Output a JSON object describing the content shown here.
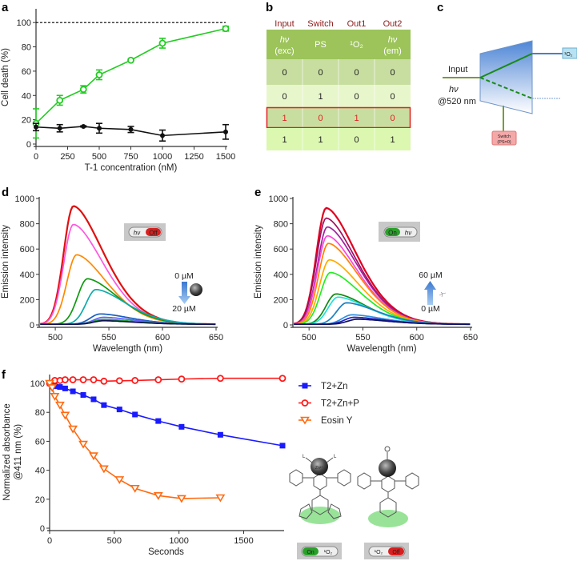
{
  "panel_labels": {
    "a": "a",
    "b": "b",
    "c": "c",
    "d": "d",
    "e": "e",
    "f": "f"
  },
  "colors": {
    "green": "#22cc22",
    "black": "#111111",
    "blue": "#1a1aff",
    "red": "#ff1a1a",
    "orange": "#ff6a10",
    "table_dark": "#9cc45a",
    "table_mid": "#c8dea0",
    "table_light": "#e8f6cc",
    "table_bright": "#dcf7b0",
    "highlight": "#e02020"
  },
  "chart_data": [
    {
      "id": "a",
      "type": "line",
      "xlabel": "T-1 concentration (nM)",
      "ylabel": "Cell death (%)",
      "xlim": [
        0,
        1500
      ],
      "ylim": [
        0,
        110
      ],
      "xticks": [
        0,
        250,
        500,
        750,
        1000,
        1250,
        1500
      ],
      "yticks": [
        0,
        20,
        40,
        60,
        80,
        100
      ],
      "reference_line": 100,
      "series": [
        {
          "name": "light",
          "color": "#22cc22",
          "marker": "open-circle",
          "x": [
            0,
            188,
            375,
            500,
            750,
            1000,
            1500
          ],
          "y": [
            17,
            36,
            45,
            57,
            69,
            83,
            95
          ],
          "err": [
            12,
            4,
            3,
            4,
            1,
            4,
            2
          ]
        },
        {
          "name": "dark",
          "color": "#111111",
          "marker": "filled-circle",
          "x": [
            0,
            188,
            375,
            500,
            750,
            1000,
            1500
          ],
          "y": [
            14,
            13,
            14.5,
            13,
            12,
            7,
            10
          ],
          "err": [
            3,
            3,
            0.5,
            4,
            2.5,
            4.5,
            6
          ]
        }
      ]
    },
    {
      "id": "b",
      "type": "table",
      "group_headers": [
        "Input",
        "Switch",
        "Out1",
        "Out2"
      ],
      "column_headers": [
        [
          "hν",
          "(exc)"
        ],
        [
          "PS",
          ""
        ],
        [
          "¹O₂",
          ""
        ],
        [
          "hν",
          "(em)"
        ]
      ],
      "rows": [
        [
          "0",
          "0",
          "0",
          "0"
        ],
        [
          "0",
          "1",
          "0",
          "0"
        ],
        [
          "1",
          "0",
          "1",
          "0"
        ],
        [
          "1",
          "1",
          "0",
          "1"
        ]
      ],
      "highlighted_row": 2
    },
    {
      "id": "d",
      "type": "line",
      "xlabel": "Wavelength (nm)",
      "ylabel": "Emission intensity",
      "xlim": [
        485,
        650
      ],
      "ylim": [
        0,
        1000
      ],
      "xticks": [
        500,
        550,
        600,
        650
      ],
      "yticks": [
        0,
        200,
        400,
        600,
        800,
        1000
      ],
      "annotation_top": "0 µM",
      "annotation_bottom": "20 µM",
      "switch_left": "hν",
      "switch_right": "Off",
      "series": [
        {
          "peak_nm": 517,
          "peak": 935,
          "color": "#e01010"
        },
        {
          "peak_nm": 517,
          "peak": 790,
          "color": "#ff55e0"
        },
        {
          "peak_nm": 520,
          "peak": 550,
          "color": "#ff8800"
        },
        {
          "peak_nm": 530,
          "peak": 360,
          "color": "#109a10"
        },
        {
          "peak_nm": 538,
          "peak": 275,
          "color": "#10aaaa"
        },
        {
          "peak_nm": 542,
          "peak": 82,
          "color": "#1a5fc0"
        },
        {
          "peak_nm": 545,
          "peak": 55,
          "color": "#6060ff"
        },
        {
          "peak_nm": 545,
          "peak": 38,
          "color": "#20a040"
        },
        {
          "peak_nm": 545,
          "peak": 28,
          "color": "#101050"
        }
      ]
    },
    {
      "id": "e",
      "type": "line",
      "xlabel": "Wavelength (nm)",
      "ylabel": "Emission intensity",
      "xlim": [
        485,
        650
      ],
      "ylim": [
        0,
        1000
      ],
      "xticks": [
        500,
        550,
        600,
        650
      ],
      "yticks": [
        0,
        200,
        400,
        600,
        800,
        1000
      ],
      "annotation_top": "60 µM",
      "annotation_bottom": "0 µM",
      "switch_left": "On",
      "switch_right": "hν",
      "series": [
        {
          "peak_nm": 516,
          "peak": 920,
          "color": "#e00020"
        },
        {
          "peak_nm": 516,
          "peak": 840,
          "color": "#a01060"
        },
        {
          "peak_nm": 517,
          "peak": 770,
          "color": "#a020a0"
        },
        {
          "peak_nm": 517,
          "peak": 700,
          "color": "#ff44dd"
        },
        {
          "peak_nm": 518,
          "peak": 640,
          "color": "#ff8000"
        },
        {
          "peak_nm": 519,
          "peak": 510,
          "color": "#ffaa00"
        },
        {
          "peak_nm": 520,
          "peak": 410,
          "color": "#22ee22"
        },
        {
          "peak_nm": 525,
          "peak": 240,
          "color": "#108810"
        },
        {
          "peak_nm": 527,
          "peak": 215,
          "color": "#22dddd"
        },
        {
          "peak_nm": 535,
          "peak": 170,
          "color": "#1a80c0"
        },
        {
          "peak_nm": 540,
          "peak": 75,
          "color": "#3090e0"
        },
        {
          "peak_nm": 542,
          "peak": 55,
          "color": "#2020c0"
        },
        {
          "peak_nm": 545,
          "peak": 40,
          "color": "#101060"
        }
      ]
    },
    {
      "id": "f",
      "type": "line",
      "xlabel": "Seconds",
      "ylabel": [
        "Normalized absorbance",
        "@411 nm (%)"
      ],
      "xlim": [
        0,
        1800
      ],
      "ylim": [
        0,
        105
      ],
      "xticks": [
        0,
        500,
        1000,
        1500
      ],
      "yticks": [
        0,
        20,
        40,
        60,
        80,
        100
      ],
      "legend_position": "right",
      "series": [
        {
          "name": "T2+Zn",
          "color": "#1a1aff",
          "marker": "square",
          "x": [
            0,
            40,
            80,
            120,
            180,
            260,
            340,
            420,
            540,
            660,
            840,
            1020,
            1320,
            1800
          ],
          "y": [
            100,
            98,
            97.5,
            96.5,
            94.5,
            92,
            89,
            85,
            82,
            78.5,
            74,
            70,
            64.5,
            57
          ]
        },
        {
          "name": "T2+Zn+P",
          "color": "#ff1a1a",
          "marker": "open-circle",
          "x": [
            0,
            40,
            80,
            120,
            180,
            260,
            340,
            420,
            540,
            660,
            840,
            1020,
            1320,
            1800
          ],
          "y": [
            100,
            102,
            102,
            102.5,
            102.5,
            102.5,
            102.5,
            101.5,
            101.8,
            102,
            102.5,
            103,
            103.5,
            103.5
          ]
        },
        {
          "name": "Eosin Y",
          "color": "#ff6a10",
          "marker": "triangle-down",
          "x": [
            0,
            20,
            40,
            80,
            120,
            180,
            260,
            340,
            420,
            540,
            660,
            840,
            1020,
            1320
          ],
          "y": [
            100,
            97,
            91,
            85,
            78,
            68.5,
            58,
            50,
            41,
            33.5,
            27.5,
            22.5,
            20.5,
            21
          ]
        }
      ]
    }
  ],
  "diagram_c": {
    "input_label": "Input",
    "hv_label": "hν",
    "wavelength_label": "@520 nm",
    "output_label": "¹O₂",
    "switch_label": [
      "Switch",
      "(PS=0)"
    ]
  },
  "molecules": {
    "metal_label": "Zn²⁺",
    "ligand_label": "L",
    "left_switch": [
      "On",
      "¹O₂"
    ],
    "right_switch": [
      "¹O₂",
      "Off"
    ]
  }
}
